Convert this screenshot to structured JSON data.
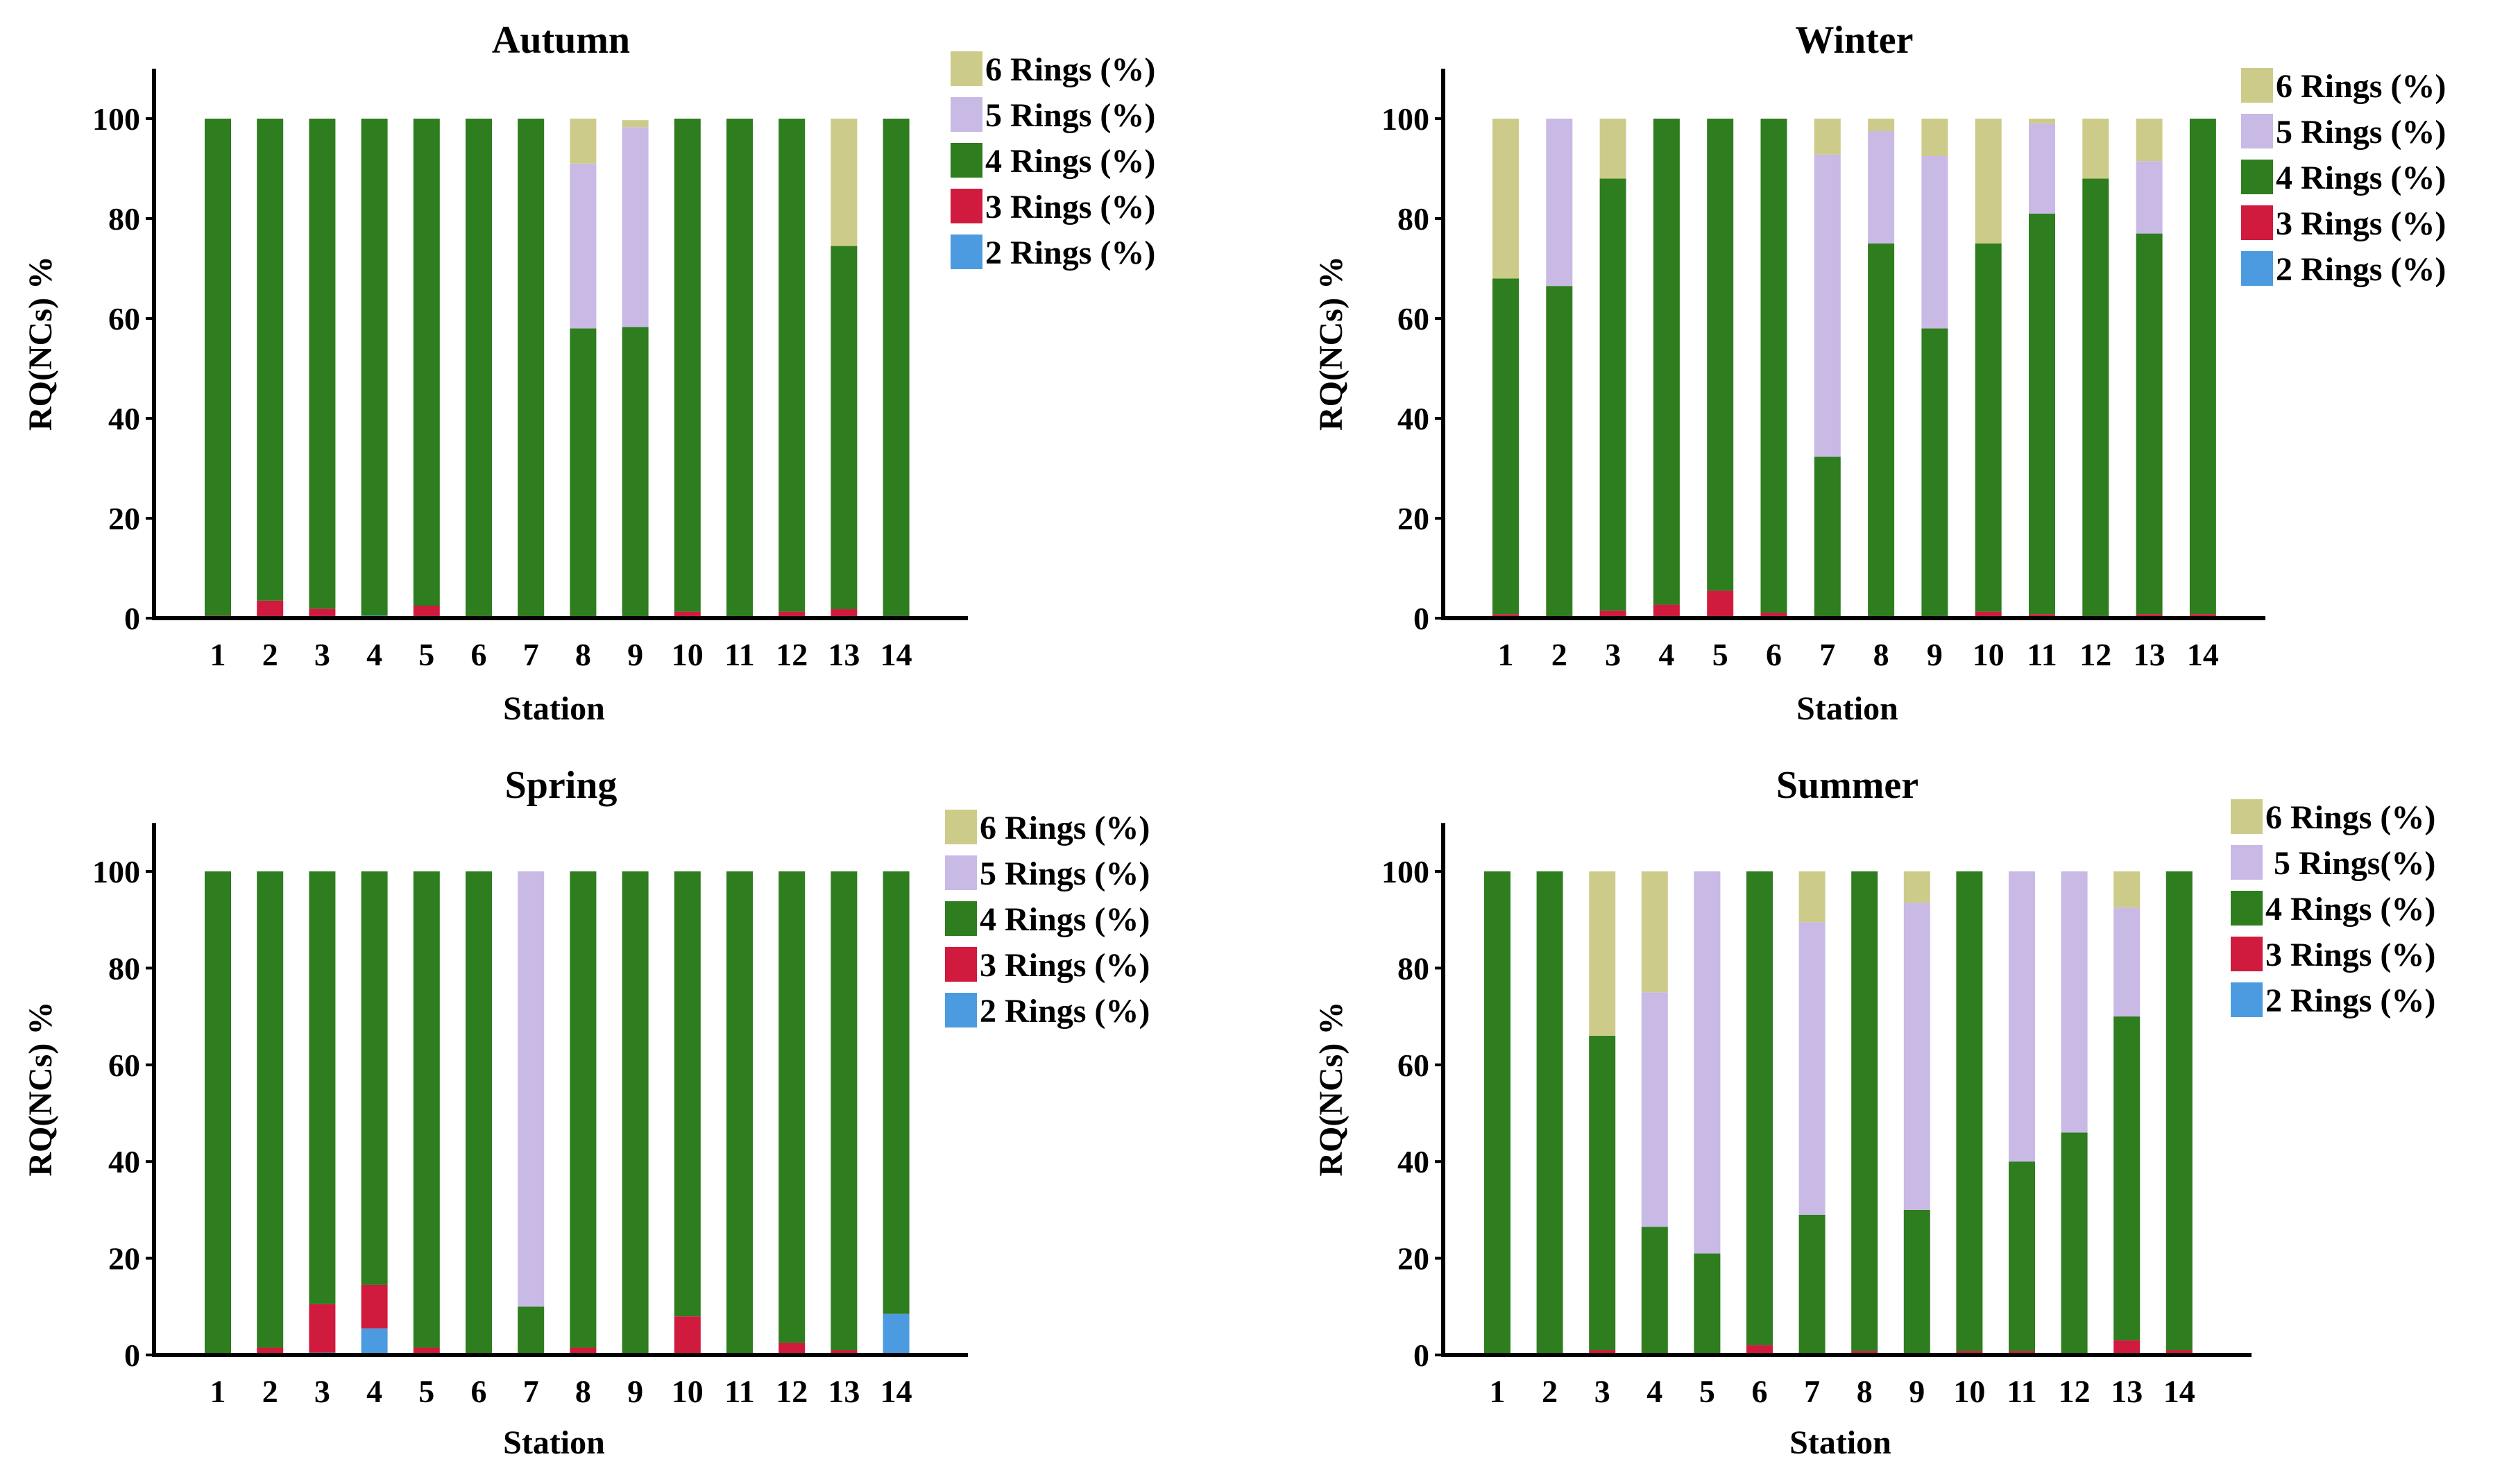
{
  "colors": {
    "ring6": "#CDCB8A",
    "ring5": "#C9B9E5",
    "ring4": "#2E7D1E",
    "ring3": "#D01A3E",
    "ring2": "#4C9BE0",
    "axis": "#000000"
  },
  "chart_data": [
    {
      "type": "bar",
      "stacked": true,
      "title": "Autumn",
      "xlabel": "Station",
      "ylabel": "RQ(NCs) %",
      "ylim": [
        0,
        110
      ],
      "yticks": [
        0,
        20,
        40,
        60,
        80,
        100
      ],
      "categories": [
        "1",
        "2",
        "3",
        "4",
        "5",
        "6",
        "7",
        "8",
        "9",
        "10",
        "11",
        "12",
        "13",
        "14"
      ],
      "legend": [
        "6 Rings (%)",
        "5 Rings (%)",
        "4 Rings (%)",
        "3 Rings (%)",
        "2 Rings (%)"
      ],
      "series": [
        {
          "name": "2 Rings (%)",
          "key": "ring2",
          "values": [
            0.3,
            0.3,
            0.3,
            0.5,
            0.3,
            0.3,
            0.3,
            0.3,
            0.3,
            0.3,
            0.3,
            0.3,
            0.3,
            0.3
          ]
        },
        {
          "name": "3 Rings (%)",
          "key": "ring3",
          "values": [
            0.2,
            3.2,
            1.6,
            0,
            2.2,
            0,
            0,
            0,
            0,
            1,
            0,
            1,
            1.5,
            0
          ]
        },
        {
          "name": "4 Rings (%)",
          "key": "ring4",
          "values": [
            99.5,
            96.5,
            98.1,
            99.5,
            97.5,
            99.7,
            99.7,
            57.7,
            58,
            98.7,
            99.7,
            98.7,
            72.7,
            99.7
          ]
        },
        {
          "name": "5 Rings (%)",
          "key": "ring5",
          "values": [
            0,
            0,
            0,
            0,
            0,
            0,
            0,
            33,
            40,
            0,
            0,
            0,
            0,
            0
          ]
        },
        {
          "name": "6 Rings (%)",
          "key": "ring6",
          "values": [
            0,
            0,
            0,
            0,
            0,
            0,
            0,
            9,
            1.4,
            0,
            0,
            0,
            25.5,
            0
          ]
        }
      ]
    },
    {
      "type": "bar",
      "stacked": true,
      "title": "Winter",
      "xlabel": "Station",
      "ylabel": "RQ(NCs) %",
      "ylim": [
        0,
        110
      ],
      "yticks": [
        0,
        20,
        40,
        60,
        80,
        100
      ],
      "categories": [
        "1",
        "2",
        "3",
        "4",
        "5",
        "6",
        "7",
        "8",
        "9",
        "10",
        "11",
        "12",
        "13",
        "14"
      ],
      "legend": [
        "6 Rings (%)",
        "5 Rings (%)",
        "4 Rings (%)",
        "3 Rings (%)",
        "2 Rings (%)"
      ],
      "series": [
        {
          "name": "2 Rings (%)",
          "key": "ring2",
          "values": [
            0.3,
            0.3,
            0.3,
            0.3,
            0.3,
            0.3,
            0.3,
            0.3,
            0.3,
            0.3,
            0.3,
            0.3,
            0.3,
            0.3
          ]
        },
        {
          "name": "3 Rings (%)",
          "key": "ring3",
          "values": [
            0.5,
            0,
            1.2,
            2.4,
            5.2,
            0.8,
            0,
            0,
            0,
            1,
            0.5,
            0,
            0.5,
            0.5
          ]
        },
        {
          "name": "4 Rings (%)",
          "key": "ring4",
          "values": [
            67.2,
            66.2,
            86.5,
            97.3,
            94.5,
            98.9,
            32,
            74.7,
            57.7,
            73.7,
            80.2,
            87.7,
            76.2,
            99.2
          ]
        },
        {
          "name": "5 Rings (%)",
          "key": "ring5",
          "values": [
            0,
            33.5,
            0,
            0,
            0,
            0,
            60.5,
            22.5,
            34.5,
            0,
            18,
            0,
            14.5,
            0
          ]
        },
        {
          "name": "6 Rings (%)",
          "key": "ring6",
          "values": [
            32,
            0,
            12,
            0,
            0,
            0,
            7.2,
            2.5,
            7.5,
            25,
            1,
            12,
            8.5,
            0
          ]
        }
      ]
    },
    {
      "type": "bar",
      "stacked": true,
      "title": "Spring",
      "xlabel": "Station",
      "ylabel": "RQ(NCs) %",
      "ylim": [
        0,
        110
      ],
      "yticks": [
        0,
        20,
        40,
        60,
        80,
        100
      ],
      "categories": [
        "1",
        "2",
        "3",
        "4",
        "5",
        "6",
        "7",
        "8",
        "9",
        "10",
        "11",
        "12",
        "13",
        "14"
      ],
      "legend": [
        "6 Rings (%)",
        "5 Rings (%)",
        "4 Rings (%)",
        "3 Rings (%)",
        "2 Rings (%)"
      ],
      "series": [
        {
          "name": "2 Rings (%)",
          "key": "ring2",
          "values": [
            0,
            0,
            0.5,
            5.5,
            0,
            0.3,
            0,
            0,
            0,
            0,
            0,
            0,
            0,
            8.5
          ]
        },
        {
          "name": "3 Rings (%)",
          "key": "ring3",
          "values": [
            0,
            1.5,
            10,
            9,
            1.5,
            0,
            0,
            1.5,
            0,
            8,
            0,
            2.5,
            1,
            0
          ]
        },
        {
          "name": "4 Rings (%)",
          "key": "ring4",
          "values": [
            100,
            98.5,
            89.5,
            85.5,
            98.5,
            99.7,
            10,
            98.5,
            100,
            92,
            100,
            97.5,
            99,
            91.5
          ]
        },
        {
          "name": "5 Rings (%)",
          "key": "ring5",
          "values": [
            0,
            0,
            0,
            0,
            0,
            0,
            90,
            0,
            0,
            0,
            0,
            0,
            0,
            0
          ]
        },
        {
          "name": "6 Rings (%)",
          "key": "ring6",
          "values": [
            0,
            0,
            0,
            0,
            0,
            0,
            0,
            0,
            0,
            0,
            0,
            0,
            0,
            0
          ]
        }
      ]
    },
    {
      "type": "bar",
      "stacked": true,
      "title": "Summer",
      "xlabel": "Station",
      "ylabel": "RQ(NCs) %",
      "ylim": [
        0,
        110
      ],
      "yticks": [
        0,
        20,
        40,
        60,
        80,
        100
      ],
      "categories": [
        "1",
        "2",
        "3",
        "4",
        "5",
        "6",
        "7",
        "8",
        "9",
        "10",
        "11",
        "12",
        "13",
        "14"
      ],
      "legend": [
        "6 Rings (%)",
        " 5 Rings(%)",
        "4 Rings (%)",
        "3 Rings (%)",
        "2 Rings (%)"
      ],
      "series": [
        {
          "name": "2 Rings (%)",
          "key": "ring2",
          "values": [
            0,
            0,
            0,
            0,
            0,
            0,
            0,
            0,
            0,
            0,
            0,
            0,
            0,
            0
          ]
        },
        {
          "name": "3 Rings (%)",
          "key": "ring3",
          "values": [
            0,
            0,
            1,
            0,
            0,
            2,
            0,
            0.8,
            0,
            0.8,
            0.8,
            0,
            3,
            1
          ]
        },
        {
          "name": "4 Rings (%)",
          "key": "ring4",
          "values": [
            100,
            100,
            65,
            26.5,
            21,
            98,
            29,
            99.2,
            30,
            99.2,
            39.2,
            46,
            67,
            99
          ]
        },
        {
          "name": "5 Rings (%)",
          "key": "ring5",
          "values": [
            0,
            0,
            0,
            48.5,
            79,
            0,
            60.5,
            0,
            63.5,
            0,
            60,
            54,
            22.5,
            0
          ]
        },
        {
          "name": "6 Rings (%)",
          "key": "ring6",
          "values": [
            0,
            0,
            34,
            25,
            0,
            0,
            10.5,
            0,
            6.5,
            0,
            0,
            0,
            7.5,
            0
          ]
        }
      ]
    }
  ]
}
